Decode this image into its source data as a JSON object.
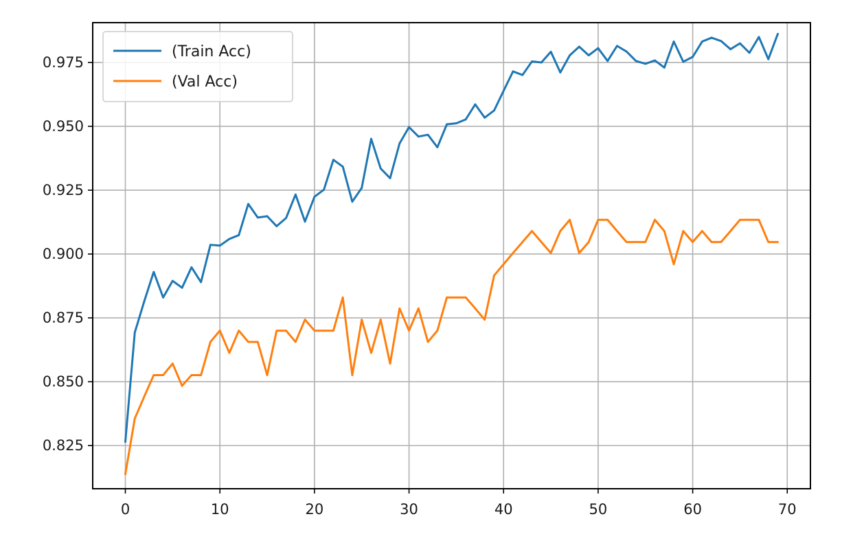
{
  "chart_data": {
    "type": "line",
    "title": "",
    "xlabel": "",
    "ylabel": "",
    "xlim": [
      -3.45,
      72.45
    ],
    "ylim": [
      0.8081,
      0.9906
    ],
    "xticks": [
      0,
      10,
      20,
      30,
      40,
      50,
      60,
      70
    ],
    "yticks": [
      0.825,
      0.85,
      0.875,
      0.9,
      0.925,
      0.95,
      0.975
    ],
    "ytick_labels": [
      "0.825",
      "0.850",
      "0.875",
      "0.900",
      "0.925",
      "0.950",
      "0.975"
    ],
    "grid": true,
    "legend_position": "upper-left",
    "x": [
      0,
      1,
      2,
      3,
      4,
      5,
      6,
      7,
      8,
      9,
      10,
      11,
      12,
      13,
      14,
      15,
      16,
      17,
      18,
      19,
      20,
      21,
      22,
      23,
      24,
      25,
      26,
      27,
      28,
      29,
      30,
      31,
      32,
      33,
      34,
      35,
      36,
      37,
      38,
      39,
      40,
      41,
      42,
      43,
      44,
      45,
      46,
      47,
      48,
      49,
      50,
      51,
      52,
      53,
      54,
      55,
      56,
      57,
      58,
      59,
      60,
      61,
      62,
      63,
      64,
      65,
      66,
      67,
      68,
      69
    ],
    "series": [
      {
        "name": "(Train Acc)",
        "color": "#1f77b4",
        "values": [
          0.8265,
          0.8693,
          0.8815,
          0.893,
          0.883,
          0.8895,
          0.8868,
          0.8948,
          0.889,
          0.9036,
          0.9033,
          0.9059,
          0.9074,
          0.9196,
          0.9143,
          0.9148,
          0.9109,
          0.9141,
          0.9233,
          0.9127,
          0.9224,
          0.9252,
          0.9369,
          0.9342,
          0.9205,
          0.9259,
          0.9451,
          0.9335,
          0.9297,
          0.9433,
          0.9497,
          0.946,
          0.9467,
          0.9418,
          0.9508,
          0.9512,
          0.9527,
          0.9586,
          0.9534,
          0.9562,
          0.9639,
          0.9715,
          0.9701,
          0.9754,
          0.975,
          0.9792,
          0.9711,
          0.9778,
          0.9812,
          0.9778,
          0.9806,
          0.9756,
          0.9815,
          0.9793,
          0.9756,
          0.9745,
          0.9758,
          0.973,
          0.9832,
          0.9753,
          0.9772,
          0.9832,
          0.9847,
          0.9834,
          0.9802,
          0.9825,
          0.9788,
          0.985,
          0.9763,
          0.9862
        ]
      },
      {
        "name": "(Val Acc)",
        "color": "#ff7f0e",
        "values": [
          0.8138,
          0.8356,
          0.8442,
          0.8526,
          0.8526,
          0.8571,
          0.8484,
          0.8526,
          0.8526,
          0.8656,
          0.87,
          0.8613,
          0.87,
          0.8656,
          0.8656,
          0.8526,
          0.87,
          0.87,
          0.8656,
          0.8743,
          0.87,
          0.87,
          0.87,
          0.883,
          0.8526,
          0.8743,
          0.8613,
          0.8743,
          0.8571,
          0.8787,
          0.87,
          0.8787,
          0.8656,
          0.87,
          0.883,
          0.883,
          0.883,
          0.8787,
          0.8743,
          0.8916,
          0.896,
          0.9004,
          0.9047,
          0.909,
          0.9047,
          0.9004,
          0.909,
          0.9134,
          0.9004,
          0.9047,
          0.9134,
          0.9134,
          0.909,
          0.9047,
          0.9047,
          0.9047,
          0.9134,
          0.909,
          0.896,
          0.909,
          0.9047,
          0.909,
          0.9047,
          0.9047,
          0.909,
          0.9134,
          0.9134,
          0.9134,
          0.9047,
          0.9047
        ]
      }
    ]
  }
}
